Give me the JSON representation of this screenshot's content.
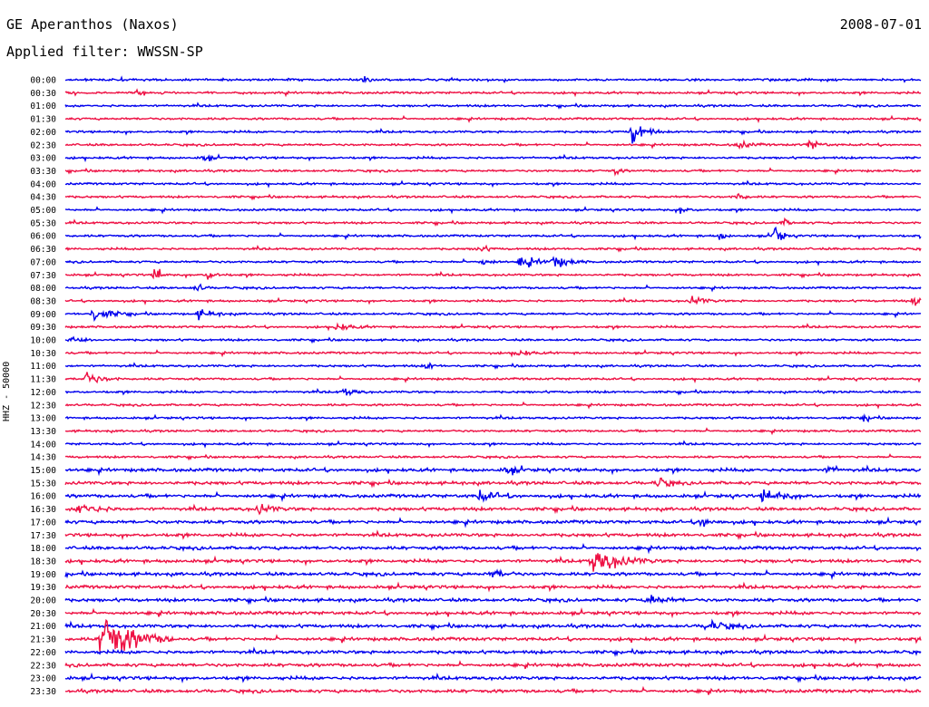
{
  "header": {
    "station": "GE Aperanthos (Naxos)",
    "date": "2008-07-01",
    "filter": "Applied filter: WWSSN-SP"
  },
  "chart_data": {
    "type": "line",
    "subtype": "helicorder",
    "ylabel": "HHZ - 50000",
    "trace_labels": [
      "00:00",
      "00:30",
      "01:00",
      "01:30",
      "02:00",
      "02:30",
      "03:00",
      "03:30",
      "04:00",
      "04:30",
      "05:00",
      "05:30",
      "06:00",
      "06:30",
      "07:00",
      "07:30",
      "08:00",
      "08:30",
      "09:00",
      "09:30",
      "10:00",
      "10:30",
      "11:00",
      "11:30",
      "12:00",
      "12:30",
      "13:00",
      "13:30",
      "14:00",
      "14:30",
      "15:00",
      "15:30",
      "16:00",
      "16:30",
      "17:00",
      "17:30",
      "18:00",
      "18:30",
      "19:00",
      "19:30",
      "20:00",
      "20:30",
      "21:00",
      "21:30",
      "22:00",
      "22:30",
      "23:00",
      "23:30"
    ],
    "colors": [
      "#0000ee",
      "#ee1144"
    ],
    "events": [
      {
        "trace": "00:00",
        "pos_min": 10.5,
        "amp": 0.6,
        "dur_min": 0.4
      },
      {
        "trace": "00:30",
        "pos_min": 2.5,
        "amp": 0.3,
        "dur_min": 0.5
      },
      {
        "trace": "02:00",
        "pos_min": 19.9,
        "amp": 1.7,
        "dur_min": 1.0
      },
      {
        "trace": "02:30",
        "pos_min": 23.6,
        "amp": 0.5,
        "dur_min": 1.0
      },
      {
        "trace": "02:30",
        "pos_min": 26.1,
        "amp": 0.7,
        "dur_min": 0.8
      },
      {
        "trace": "03:00",
        "pos_min": 4.9,
        "amp": 0.5,
        "dur_min": 0.5
      },
      {
        "trace": "03:30",
        "pos_min": 19.3,
        "amp": 0.5,
        "dur_min": 0.4
      },
      {
        "trace": "04:30",
        "pos_min": 23.6,
        "amp": 0.5,
        "dur_min": 0.6
      },
      {
        "trace": "05:00",
        "pos_min": 21.6,
        "amp": 0.5,
        "dur_min": 0.6
      },
      {
        "trace": "05:30",
        "pos_min": 25.2,
        "amp": 0.4,
        "dur_min": 0.6
      },
      {
        "trace": "06:00",
        "pos_min": 24.9,
        "amp": 1.6,
        "dur_min": 0.5
      },
      {
        "trace": "06:00",
        "pos_min": 23.0,
        "amp": 0.6,
        "dur_min": 0.4
      },
      {
        "trace": "06:30",
        "pos_min": 14.5,
        "amp": 0.6,
        "dur_min": 0.6
      },
      {
        "trace": "07:00",
        "pos_min": 16.0,
        "amp": 0.8,
        "dur_min": 1.2
      },
      {
        "trace": "07:00",
        "pos_min": 17.1,
        "amp": 0.9,
        "dur_min": 1.2
      },
      {
        "trace": "07:00",
        "pos_min": 14.6,
        "amp": 0.5,
        "dur_min": 0.8
      },
      {
        "trace": "07:30",
        "pos_min": 3.2,
        "amp": 1.6,
        "dur_min": 0.4
      },
      {
        "trace": "07:30",
        "pos_min": 5.0,
        "amp": 0.6,
        "dur_min": 0.7
      },
      {
        "trace": "08:00",
        "pos_min": 4.6,
        "amp": 0.7,
        "dur_min": 0.5
      },
      {
        "trace": "08:30",
        "pos_min": 22.0,
        "amp": 0.6,
        "dur_min": 1.0
      },
      {
        "trace": "08:30",
        "pos_min": 29.8,
        "amp": 0.8,
        "dur_min": 0.4
      },
      {
        "trace": "09:00",
        "pos_min": 1.0,
        "amp": 0.8,
        "dur_min": 1.6
      },
      {
        "trace": "09:00",
        "pos_min": 4.7,
        "amp": 0.6,
        "dur_min": 1.2
      },
      {
        "trace": "09:30",
        "pos_min": 9.5,
        "amp": 0.5,
        "dur_min": 1.2
      },
      {
        "trace": "10:00",
        "pos_min": 0.3,
        "amp": 0.6,
        "dur_min": 0.8
      },
      {
        "trace": "10:30",
        "pos_min": 15.8,
        "amp": 0.5,
        "dur_min": 1.0
      },
      {
        "trace": "11:00",
        "pos_min": 12.7,
        "amp": 0.5,
        "dur_min": 0.5
      },
      {
        "trace": "11:30",
        "pos_min": 0.7,
        "amp": 0.9,
        "dur_min": 1.2
      },
      {
        "trace": "12:00",
        "pos_min": 9.8,
        "amp": 0.6,
        "dur_min": 0.8
      },
      {
        "trace": "13:00",
        "pos_min": 28.0,
        "amp": 0.6,
        "dur_min": 0.6
      },
      {
        "trace": "15:00",
        "pos_min": 15.5,
        "amp": 0.6,
        "dur_min": 0.8
      },
      {
        "trace": "15:00",
        "pos_min": 26.8,
        "amp": 0.7,
        "dur_min": 0.6
      },
      {
        "trace": "15:30",
        "pos_min": 20.8,
        "amp": 0.7,
        "dur_min": 0.8
      },
      {
        "trace": "16:00",
        "pos_min": 14.5,
        "amp": 0.7,
        "dur_min": 1.5
      },
      {
        "trace": "16:00",
        "pos_min": 24.5,
        "amp": 0.8,
        "dur_min": 1.8
      },
      {
        "trace": "16:30",
        "pos_min": 0.5,
        "amp": 0.8,
        "dur_min": 1.5
      },
      {
        "trace": "16:30",
        "pos_min": 6.8,
        "amp": 0.6,
        "dur_min": 1.2
      },
      {
        "trace": "17:00",
        "pos_min": 22.3,
        "amp": 0.8,
        "dur_min": 0.8
      },
      {
        "trace": "18:30",
        "pos_min": 18.5,
        "amp": 1.6,
        "dur_min": 2.3
      },
      {
        "trace": "19:00",
        "pos_min": 15.0,
        "amp": 0.6,
        "dur_min": 1.0
      },
      {
        "trace": "20:00",
        "pos_min": 20.5,
        "amp": 0.7,
        "dur_min": 1.2
      },
      {
        "trace": "21:00",
        "pos_min": 22.5,
        "amp": 0.7,
        "dur_min": 1.5
      },
      {
        "trace": "21:30",
        "pos_min": 1.3,
        "amp": 3.5,
        "dur_min": 2.5
      }
    ]
  }
}
